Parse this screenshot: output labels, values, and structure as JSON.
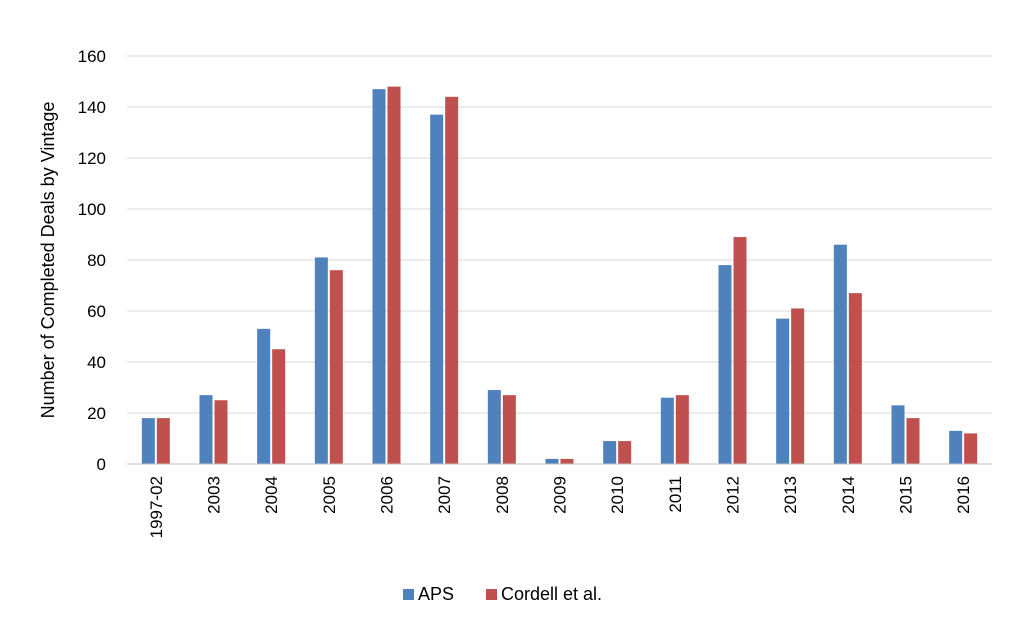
{
  "chart_data": {
    "type": "bar",
    "title": "",
    "xlabel": "",
    "ylabel": "Number of Completed Deals by Vintage",
    "ylim": [
      0,
      160
    ],
    "yticks": [
      0,
      20,
      40,
      60,
      80,
      100,
      120,
      140,
      160
    ],
    "grid": true,
    "legend_position": "bottom",
    "categories": [
      "1997-02",
      "2003",
      "2004",
      "2005",
      "2006",
      "2007",
      "2008",
      "2009",
      "2010",
      "2011",
      "2012",
      "2013",
      "2014",
      "2015",
      "2016"
    ],
    "series": [
      {
        "name": "APS",
        "color": "#4f81bd",
        "values": [
          18,
          27,
          53,
          81,
          147,
          137,
          29,
          2,
          9,
          26,
          78,
          57,
          86,
          23,
          13
        ]
      },
      {
        "name": "Cordell et al.",
        "color": "#c0504d",
        "values": [
          18,
          25,
          45,
          76,
          148,
          144,
          27,
          2,
          9,
          27,
          89,
          61,
          67,
          18,
          12
        ]
      }
    ]
  }
}
